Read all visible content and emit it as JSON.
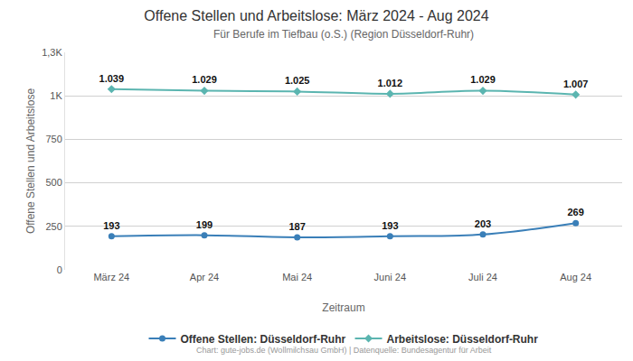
{
  "chart_data": {
    "type": "line",
    "title": "Offene Stellen und Arbeitslose: März 2024 - Aug 2024",
    "subtitle": "Für Berufe im Tiefbau (o.S.) (Region Düsseldorf-Ruhr)",
    "x_label": "Zeitraum",
    "y_label": "Offene Stellen und Arbeitslose",
    "categories": [
      "März 24",
      "Apr 24",
      "Mai 24",
      "Juni 24",
      "Juli 24",
      "Aug 24"
    ],
    "series": [
      {
        "name": "Offene Stellen: Düsseldorf-Ruhr",
        "color": "#3a7fb8",
        "marker": "circle",
        "values": [
          193,
          199,
          187,
          193,
          203,
          269
        ],
        "value_labels": [
          "193",
          "199",
          "187",
          "193",
          "203",
          "269"
        ]
      },
      {
        "name": "Arbeitslose: Düsseldorf-Ruhr",
        "color": "#5bb5b0",
        "marker": "diamond",
        "values": [
          1039,
          1029,
          1025,
          1012,
          1029,
          1007
        ],
        "value_labels": [
          "1.039",
          "1.029",
          "1.025",
          "1.012",
          "1.029",
          "1.007"
        ]
      }
    ],
    "ylim": [
      0,
      1250
    ],
    "yticks": [
      0,
      250,
      500,
      750,
      {
        "value": 1000,
        "label": "1K"
      },
      {
        "value": 1250,
        "label": "1,3K"
      }
    ],
    "grid": true,
    "legend": "bottom",
    "data_labels": true,
    "annotations": [
      "Chart: gute-jobs.de (Wollmilchsau GmbH) | Datenquelle: Bundesagentur für Arbeit"
    ]
  }
}
